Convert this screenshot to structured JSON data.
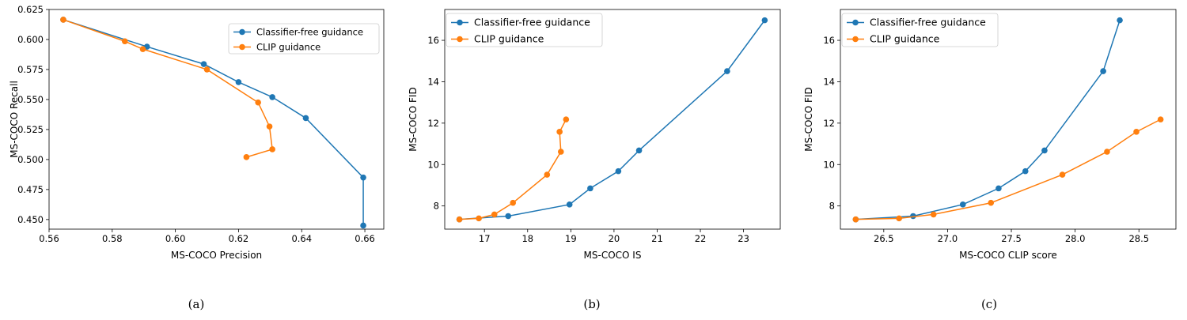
{
  "chart_data": [
    {
      "type": "line",
      "caption": "(a)",
      "xlabel": "MS-COCO Precision",
      "ylabel": "MS-COCO Recall",
      "xlim": [
        0.56,
        0.666
      ],
      "ylim": [
        0.442,
        0.625
      ],
      "xticks": [
        0.56,
        0.58,
        0.6,
        0.62,
        0.64,
        0.66
      ],
      "xtick_labels": [
        "0.56",
        "0.58",
        "0.60",
        "0.62",
        "0.64",
        "0.66"
      ],
      "yticks": [
        0.45,
        0.475,
        0.5,
        0.525,
        0.55,
        0.575,
        0.6,
        0.625
      ],
      "ytick_labels": [
        "0.450",
        "0.475",
        "0.500",
        "0.525",
        "0.550",
        "0.575",
        "0.600",
        "0.625"
      ],
      "legend_position": "top-right",
      "grid": false,
      "series": [
        {
          "name": "Classifier-free guidance",
          "color": "#1f77b4",
          "x": [
            0.5645,
            0.591,
            0.609,
            0.62,
            0.6307,
            0.6413,
            0.6595,
            0.6595
          ],
          "y": [
            0.6165,
            0.594,
            0.5795,
            0.5645,
            0.552,
            0.5345,
            0.485,
            0.445
          ]
        },
        {
          "name": "CLIP guidance",
          "color": "#ff7f0e",
          "x": [
            0.5645,
            0.584,
            0.5897,
            0.61,
            0.6262,
            0.6298,
            0.6307,
            0.6225
          ],
          "y": [
            0.6165,
            0.5985,
            0.592,
            0.575,
            0.5475,
            0.5275,
            0.5085,
            0.502
          ]
        }
      ]
    },
    {
      "type": "line",
      "caption": "(b)",
      "xlabel": "MS-COCO IS",
      "ylabel": "MS-COCO FID",
      "xlim": [
        16.08,
        23.85
      ],
      "ylim": [
        6.88,
        17.49
      ],
      "xticks": [
        17,
        18,
        19,
        20,
        21,
        22,
        23
      ],
      "xtick_labels": [
        "17",
        "18",
        "19",
        "20",
        "21",
        "22",
        "23"
      ],
      "yticks": [
        8,
        10,
        12,
        14,
        16
      ],
      "ytick_labels": [
        "8",
        "10",
        "12",
        "14",
        "16"
      ],
      "legend_position": "top-left",
      "grid": false,
      "series": [
        {
          "name": "Classifier-free guidance",
          "color": "#1f77b4",
          "x": [
            16.42,
            17.55,
            18.97,
            19.45,
            20.1,
            20.58,
            22.62,
            23.49
          ],
          "y": [
            7.35,
            7.51,
            8.07,
            8.85,
            9.68,
            10.68,
            14.51,
            16.97
          ]
        },
        {
          "name": "CLIP guidance",
          "color": "#ff7f0e",
          "x": [
            16.42,
            16.87,
            17.23,
            17.66,
            18.45,
            18.77,
            18.74,
            18.89
          ],
          "y": [
            7.35,
            7.4,
            7.59,
            8.15,
            9.51,
            10.62,
            11.58,
            12.18
          ]
        }
      ]
    },
    {
      "type": "line",
      "caption": "(c)",
      "xlabel": "MS-COCO CLIP score",
      "ylabel": "MS-COCO FID",
      "xlim": [
        26.16,
        28.79
      ],
      "ylim": [
        6.88,
        17.49
      ],
      "xticks": [
        26.5,
        27.0,
        27.5,
        28.0,
        28.5
      ],
      "xtick_labels": [
        "26.5",
        "27.0",
        "27.5",
        "28.0",
        "28.5"
      ],
      "yticks": [
        8,
        10,
        12,
        14,
        16
      ],
      "ytick_labels": [
        "8",
        "10",
        "12",
        "14",
        "16"
      ],
      "legend_position": "top-left",
      "grid": false,
      "series": [
        {
          "name": "Classifier-free guidance",
          "color": "#1f77b4",
          "x": [
            26.28,
            26.73,
            27.12,
            27.4,
            27.61,
            27.76,
            28.22,
            28.35
          ],
          "y": [
            7.35,
            7.51,
            8.07,
            8.85,
            9.68,
            10.68,
            14.51,
            16.97
          ]
        },
        {
          "name": "CLIP guidance",
          "color": "#ff7f0e",
          "x": [
            26.28,
            26.62,
            26.89,
            27.34,
            27.9,
            28.25,
            28.48,
            28.67
          ],
          "y": [
            7.35,
            7.4,
            7.59,
            8.15,
            9.51,
            10.62,
            11.58,
            12.18
          ]
        }
      ]
    }
  ]
}
